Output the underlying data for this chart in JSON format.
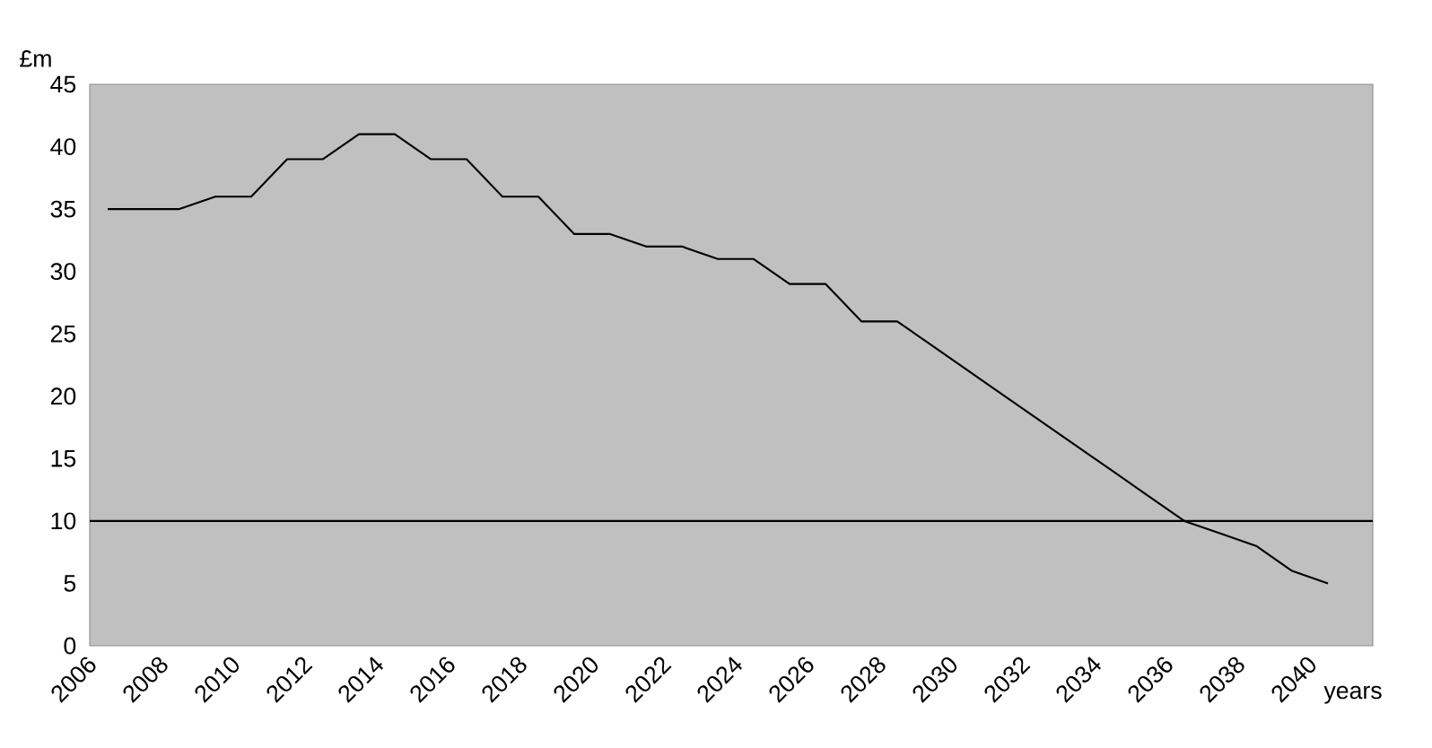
{
  "chart_data": {
    "type": "line",
    "ylabel": "£m",
    "xlabel": "years",
    "x": [
      2006.5,
      2007.5,
      2008.5,
      2009.5,
      2010.5,
      2011.5,
      2012.5,
      2013.5,
      2014.5,
      2015.5,
      2016.5,
      2017.5,
      2018.5,
      2019.5,
      2020.5,
      2021.5,
      2022.5,
      2023.5,
      2024.5,
      2025.5,
      2026.5,
      2027.5,
      2028.5,
      2029.5,
      2030.5,
      2031.5,
      2032.5,
      2033.5,
      2034.5,
      2035.5,
      2036.5,
      2037.5,
      2038.5,
      2039.5,
      2040.5
    ],
    "series": [
      {
        "color": "#000000",
        "values": [
          35,
          35,
          35,
          36,
          36,
          39,
          39,
          41,
          41,
          39,
          39,
          36,
          36,
          33,
          33,
          32,
          32,
          31,
          31,
          29,
          29,
          26,
          26,
          24,
          22,
          20,
          18,
          16,
          14,
          12,
          10,
          9,
          8,
          6,
          5
        ]
      }
    ],
    "xlim": [
      2006,
      2041.75
    ],
    "ylim": [
      0,
      45
    ],
    "xticks": [
      2006,
      2008,
      2010,
      2012,
      2014,
      2016,
      2018,
      2020,
      2022,
      2024,
      2026,
      2028,
      2030,
      2032,
      2034,
      2036,
      2038,
      2040
    ],
    "yticks": [
      0,
      5,
      10,
      15,
      20,
      25,
      30,
      35,
      40,
      45
    ],
    "ref_lines": [
      {
        "axis": "y",
        "value": 10,
        "color": "#000000"
      }
    ],
    "grid": false,
    "marker": "none",
    "line_style": "solid"
  }
}
